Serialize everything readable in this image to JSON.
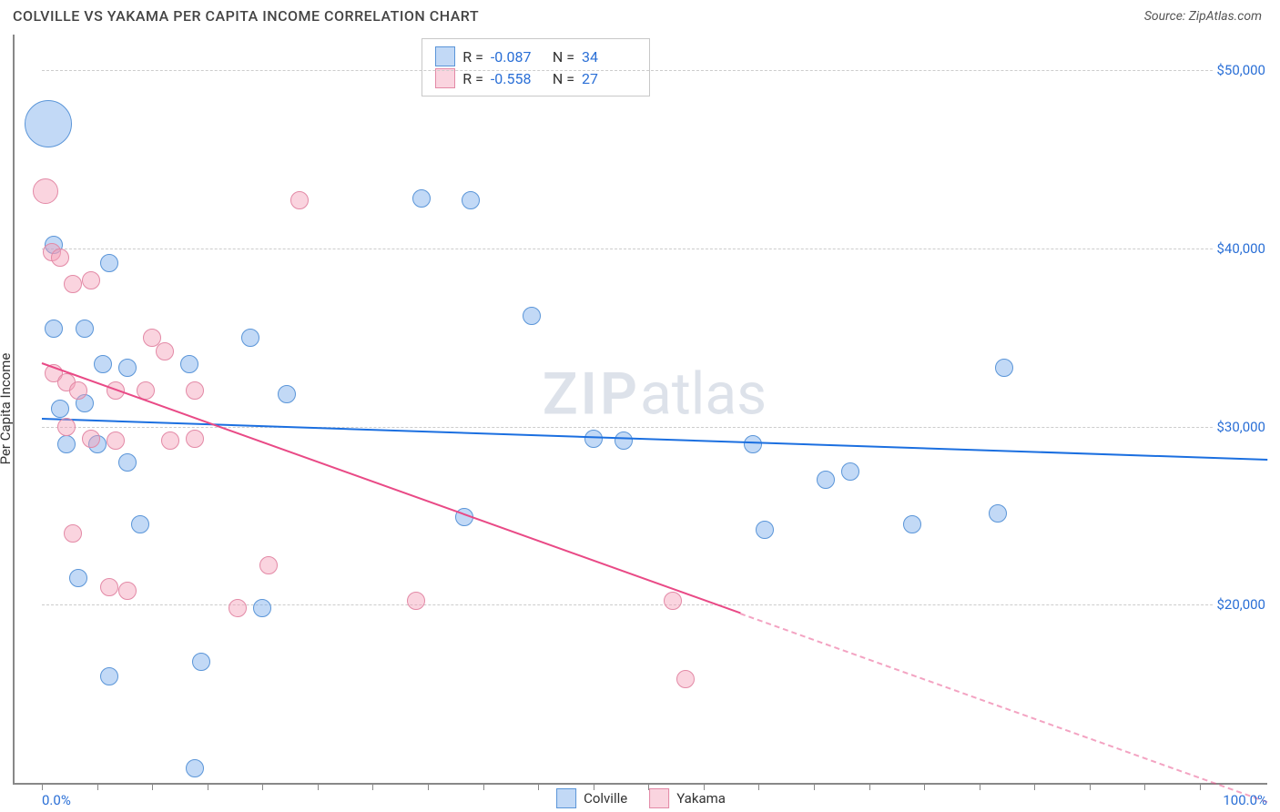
{
  "header": {
    "title": "COLVILLE VS YAKAMA PER CAPITA INCOME CORRELATION CHART",
    "source": "Source: ZipAtlas.com"
  },
  "watermark": {
    "zip": "ZIP",
    "atlas": "atlas"
  },
  "chart": {
    "type": "scatter",
    "ylabel": "Per Capita Income",
    "xlim": [
      0,
      100
    ],
    "ylim": [
      10000,
      52000
    ],
    "xtick_start": "0.0%",
    "xtick_end": "100.0%",
    "xtick_positions_pct": [
      0,
      4.5,
      9,
      13.5,
      18,
      22.5,
      27,
      31.5,
      36,
      40.5,
      45,
      49.5,
      54,
      58.5,
      63,
      67.5,
      72,
      76.5,
      81,
      85.5,
      90,
      94.5
    ],
    "yticks": [
      {
        "v": 20000,
        "label": "$20,000"
      },
      {
        "v": 30000,
        "label": "$30,000"
      },
      {
        "v": 40000,
        "label": "$40,000"
      },
      {
        "v": 50000,
        "label": "$50,000"
      }
    ],
    "grid_color": "#cccccc",
    "axis_color": "#888888",
    "tick_label_color": "#2a6fd6",
    "background_color": "#ffffff",
    "series": [
      {
        "name": "Colville",
        "fill": "rgba(120,170,235,0.45)",
        "stroke": "#5a95d8",
        "trend_color": "#1b6fe0",
        "R": "-0.087",
        "N": "34",
        "trend": {
          "x1": 0,
          "y1": 30500,
          "x2": 100,
          "y2": 28200,
          "dash_from_x": 100
        },
        "points": [
          {
            "x": 0.5,
            "y": 47000,
            "r": 26
          },
          {
            "x": 1.0,
            "y": 40200,
            "r": 10
          },
          {
            "x": 5.5,
            "y": 39200,
            "r": 10
          },
          {
            "x": 1.0,
            "y": 35500,
            "r": 10
          },
          {
            "x": 3.5,
            "y": 35500,
            "r": 10
          },
          {
            "x": 17.0,
            "y": 35000,
            "r": 10
          },
          {
            "x": 5.0,
            "y": 33500,
            "r": 10
          },
          {
            "x": 7.0,
            "y": 33300,
            "r": 10
          },
          {
            "x": 12.0,
            "y": 33500,
            "r": 10
          },
          {
            "x": 1.5,
            "y": 31000,
            "r": 10
          },
          {
            "x": 3.5,
            "y": 31300,
            "r": 10
          },
          {
            "x": 2.0,
            "y": 29000,
            "r": 10
          },
          {
            "x": 4.5,
            "y": 29000,
            "r": 10
          },
          {
            "x": 7.0,
            "y": 28000,
            "r": 10
          },
          {
            "x": 8.0,
            "y": 24500,
            "r": 10
          },
          {
            "x": 3.0,
            "y": 21500,
            "r": 10
          },
          {
            "x": 13.0,
            "y": 16800,
            "r": 10
          },
          {
            "x": 5.5,
            "y": 16000,
            "r": 10
          },
          {
            "x": 12.5,
            "y": 10800,
            "r": 10
          },
          {
            "x": 18.0,
            "y": 19800,
            "r": 10
          },
          {
            "x": 20.0,
            "y": 31800,
            "r": 10
          },
          {
            "x": 31.0,
            "y": 42800,
            "r": 10
          },
          {
            "x": 35.0,
            "y": 42700,
            "r": 10
          },
          {
            "x": 34.5,
            "y": 24900,
            "r": 10
          },
          {
            "x": 40.0,
            "y": 36200,
            "r": 10
          },
          {
            "x": 45.0,
            "y": 29300,
            "r": 10
          },
          {
            "x": 47.5,
            "y": 29200,
            "r": 10
          },
          {
            "x": 58.0,
            "y": 29000,
            "r": 10
          },
          {
            "x": 59.0,
            "y": 24200,
            "r": 10
          },
          {
            "x": 64.0,
            "y": 27000,
            "r": 10
          },
          {
            "x": 66.0,
            "y": 27500,
            "r": 10
          },
          {
            "x": 71.0,
            "y": 24500,
            "r": 10
          },
          {
            "x": 78.0,
            "y": 25100,
            "r": 10
          },
          {
            "x": 78.5,
            "y": 33300,
            "r": 10
          }
        ]
      },
      {
        "name": "Yakama",
        "fill": "rgba(245,160,185,0.45)",
        "stroke": "#e389a6",
        "trend_color": "#e94a86",
        "R": "-0.558",
        "N": "27",
        "trend": {
          "x1": 0,
          "y1": 33600,
          "x2": 100,
          "y2": 9000,
          "dash_from_x": 57
        },
        "points": [
          {
            "x": 0.3,
            "y": 43200,
            "r": 14
          },
          {
            "x": 0.8,
            "y": 39800,
            "r": 10
          },
          {
            "x": 1.5,
            "y": 39500,
            "r": 10
          },
          {
            "x": 2.5,
            "y": 38000,
            "r": 10
          },
          {
            "x": 4.0,
            "y": 38200,
            "r": 10
          },
          {
            "x": 1.0,
            "y": 33000,
            "r": 10
          },
          {
            "x": 2.0,
            "y": 32500,
            "r": 10
          },
          {
            "x": 3.0,
            "y": 32000,
            "r": 10
          },
          {
            "x": 9.0,
            "y": 35000,
            "r": 10
          },
          {
            "x": 6.0,
            "y": 32000,
            "r": 10
          },
          {
            "x": 8.5,
            "y": 32000,
            "r": 10
          },
          {
            "x": 10.0,
            "y": 34200,
            "r": 10
          },
          {
            "x": 12.5,
            "y": 32000,
            "r": 10
          },
          {
            "x": 2.0,
            "y": 30000,
            "r": 10
          },
          {
            "x": 4.0,
            "y": 29300,
            "r": 10
          },
          {
            "x": 6.0,
            "y": 29200,
            "r": 10
          },
          {
            "x": 10.5,
            "y": 29200,
            "r": 10
          },
          {
            "x": 12.5,
            "y": 29300,
            "r": 10
          },
          {
            "x": 2.5,
            "y": 24000,
            "r": 10
          },
          {
            "x": 5.5,
            "y": 21000,
            "r": 10
          },
          {
            "x": 7.0,
            "y": 20800,
            "r": 10
          },
          {
            "x": 16.0,
            "y": 19800,
            "r": 10
          },
          {
            "x": 18.5,
            "y": 22200,
            "r": 10
          },
          {
            "x": 21.0,
            "y": 42700,
            "r": 10
          },
          {
            "x": 30.5,
            "y": 20200,
            "r": 10
          },
          {
            "x": 51.5,
            "y": 20200,
            "r": 10
          },
          {
            "x": 52.5,
            "y": 15800,
            "r": 10
          }
        ]
      }
    ]
  },
  "legend_labels": {
    "colville": "Colville",
    "yakama": "Yakama"
  },
  "stats_labels": {
    "R": "R =",
    "N": "N ="
  }
}
